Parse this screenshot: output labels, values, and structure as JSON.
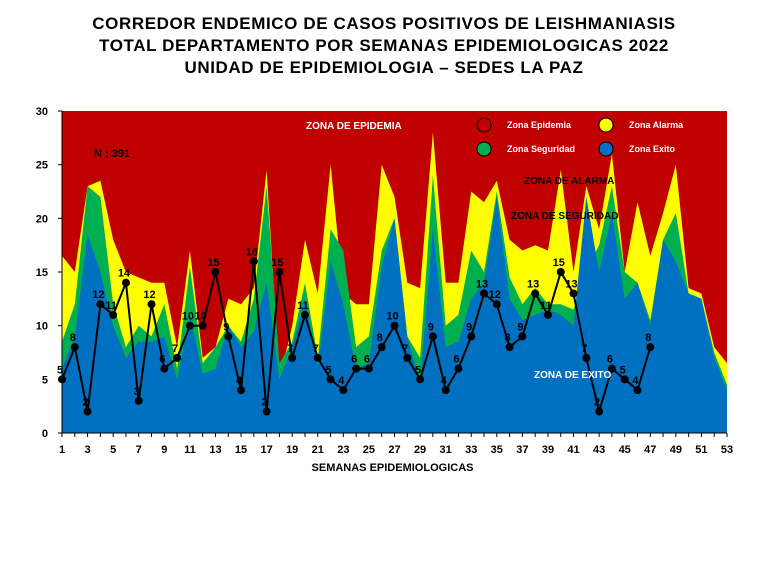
{
  "titles": {
    "line1": "CORREDOR ENDEMICO DE CASOS POSITIVOS DE LEISHMANIASIS",
    "line2": "TOTAL DEPARTAMENTO POR SEMANAS EPIDEMIOLOGICAS 2022",
    "line3": "UNIDAD DE EPIDEMIOLOGIA – SEDES LA PAZ"
  },
  "colors": {
    "epidemia": "#C00000",
    "alarma": "#FFFF00",
    "seguridad": "#00B050",
    "exito": "#0070C0",
    "line": "#000000"
  },
  "chart_data": {
    "type": "area",
    "xlabel": "SEMANAS EPIDEMIOLOGICAS",
    "ylabel": "",
    "ylim": [
      0,
      30
    ],
    "yticks": [
      0,
      5,
      10,
      15,
      20,
      25,
      30
    ],
    "xlim": [
      1,
      53
    ],
    "xticks": [
      1,
      3,
      5,
      7,
      9,
      11,
      13,
      15,
      17,
      19,
      21,
      23,
      25,
      27,
      29,
      31,
      33,
      35,
      37,
      39,
      41,
      43,
      45,
      47,
      49,
      51,
      53
    ],
    "grid": false,
    "annotation_n": "N : 391",
    "zone_labels": {
      "epidemia": "ZONA DE EPIDEMIA",
      "alarma": "ZONA DE ALARMA",
      "seguridad": "ZONA  DE  SEGURIDAD",
      "exito": "ZONA DE  EXITO"
    },
    "legend": [
      {
        "name": "Zona Epidemia",
        "color": "#C00000"
      },
      {
        "name": "Zona Alarma",
        "color": "#FFFF00"
      },
      {
        "name": "Zona Seguridad",
        "color": "#00B050"
      },
      {
        "name": "Zona Exito",
        "color": "#0070C0"
      }
    ],
    "weeks": [
      1,
      2,
      3,
      4,
      5,
      6,
      7,
      8,
      9,
      10,
      11,
      12,
      13,
      14,
      15,
      16,
      17,
      18,
      19,
      20,
      21,
      22,
      23,
      24,
      25,
      26,
      27,
      28,
      29,
      30,
      31,
      32,
      33,
      34,
      35,
      36,
      37,
      38,
      39,
      40,
      41,
      42,
      43,
      44,
      45,
      46,
      47,
      48,
      49,
      50,
      51,
      52,
      53
    ],
    "series": [
      {
        "name": "Zona Alarma",
        "values": [
          16.5,
          15,
          23,
          23.5,
          18,
          15,
          14.5,
          14,
          14,
          8,
          17,
          7,
          8,
          12.5,
          12,
          13.5,
          24.5,
          5,
          10,
          18,
          13,
          25,
          13,
          12,
          12,
          25,
          22,
          14,
          13.5,
          28,
          14,
          14,
          22.5,
          21.5,
          23.5,
          18,
          17,
          17.5,
          17,
          24.5,
          15,
          23,
          19,
          26,
          15,
          21.5,
          16.5,
          20.5,
          25,
          13.5,
          13,
          8,
          6.5
        ]
      },
      {
        "name": "Zona Seguridad",
        "values": [
          8.5,
          12,
          23,
          22,
          12,
          8,
          10,
          9,
          12,
          6,
          15.5,
          6.5,
          8,
          10,
          8.5,
          12.5,
          23,
          6.5,
          8.5,
          14,
          7,
          19,
          17,
          8,
          9,
          17,
          20,
          9,
          7,
          24,
          10,
          11,
          17,
          15,
          22.5,
          14.5,
          12,
          13.5,
          12,
          12,
          11.5,
          15,
          17.5,
          23,
          15,
          14,
          10.5,
          18,
          20.5,
          13,
          12.5,
          7.5,
          4.5
        ]
      },
      {
        "name": "Zona Exito",
        "values": [
          6,
          9,
          18.5,
          15,
          10,
          7,
          8.5,
          8.5,
          9,
          5,
          11,
          5.5,
          6,
          10,
          8,
          9.5,
          14,
          5,
          8,
          12.5,
          6,
          16,
          12,
          6,
          6.5,
          15.5,
          20,
          9,
          4.5,
          19,
          8,
          8.5,
          12.5,
          14,
          22,
          12.5,
          10.5,
          11,
          11.5,
          11,
          10,
          22,
          15,
          20.5,
          12.5,
          14,
          10,
          18,
          16,
          13,
          12.5,
          7,
          4
        ]
      },
      {
        "name": "Casos 2022",
        "values": [
          5,
          8,
          2,
          12,
          11,
          14,
          3,
          12,
          6,
          7,
          10,
          10,
          15,
          9,
          4,
          16,
          2,
          15,
          7,
          11,
          7,
          5,
          4,
          6,
          6,
          8,
          10,
          7,
          5,
          9,
          4,
          6,
          9,
          13,
          12,
          8,
          9,
          13,
          11,
          15,
          13,
          7,
          2,
          6,
          5,
          4,
          8
        ]
      }
    ]
  }
}
